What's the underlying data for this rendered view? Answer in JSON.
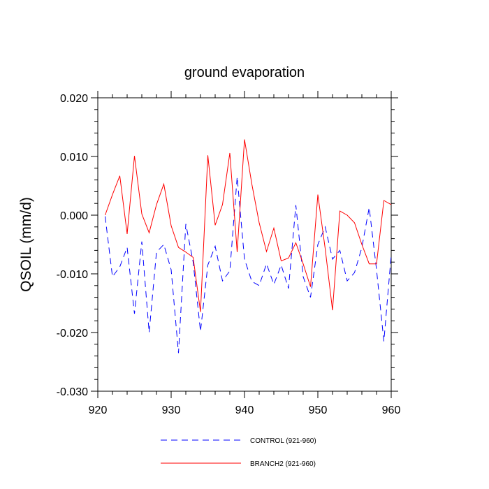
{
  "chart_data": {
    "type": "line",
    "title": "ground evaporation",
    "ylabel": "QSOIL  (mm/d)",
    "xlabel": "",
    "xlim": [
      920,
      960
    ],
    "ylim": [
      -0.03,
      0.02
    ],
    "x_ticks": [
      920,
      930,
      940,
      950,
      960
    ],
    "x_tick_labels": [
      "920",
      "930",
      "940",
      "950",
      "960"
    ],
    "y_ticks": [
      0.02,
      0.01,
      0.0,
      -0.01,
      -0.02,
      -0.03
    ],
    "y_tick_labels": [
      "0.020",
      "0.010",
      "0.000",
      "-0.010",
      "-0.020",
      "-0.030"
    ],
    "legend_position": "bottom",
    "x": [
      921,
      922,
      923,
      924,
      925,
      926,
      927,
      928,
      929,
      930,
      931,
      932,
      933,
      934,
      935,
      936,
      937,
      938,
      939,
      940,
      941,
      942,
      943,
      944,
      945,
      946,
      947,
      948,
      949,
      950,
      951,
      952,
      953,
      954,
      955,
      956,
      957,
      958,
      959,
      960
    ],
    "series": [
      {
        "name": "CONTROL (921-960)",
        "color": "#0000ff",
        "dashed": true,
        "values": [
          -0.0002,
          -0.0105,
          -0.0088,
          -0.0055,
          -0.0168,
          -0.0045,
          -0.02,
          -0.0063,
          -0.005,
          -0.0093,
          -0.0235,
          -0.0015,
          -0.008,
          -0.0198,
          -0.0085,
          -0.0053,
          -0.0112,
          -0.0095,
          0.0065,
          -0.0075,
          -0.0113,
          -0.012,
          -0.0083,
          -0.0118,
          -0.0085,
          -0.0125,
          0.0017,
          -0.0105,
          -0.014,
          -0.005,
          -0.002,
          -0.0075,
          -0.006,
          -0.0112,
          -0.0098,
          -0.0055,
          0.0013,
          -0.0093,
          -0.0215,
          -0.0068
        ]
      },
      {
        "name": "BRANCH2 (921-960)",
        "color": "#ff0000",
        "dashed": false,
        "values": [
          0.0,
          0.0035,
          0.0067,
          -0.0032,
          0.0101,
          0.0002,
          -0.003,
          0.0018,
          0.0053,
          -0.0018,
          -0.0055,
          -0.0063,
          -0.0072,
          -0.0165,
          0.0102,
          -0.0017,
          0.0018,
          0.0106,
          -0.0063,
          0.0129,
          0.0053,
          -0.0013,
          -0.0062,
          -0.0022,
          -0.0078,
          -0.0073,
          -0.0047,
          -0.0083,
          -0.0122,
          0.0035,
          -0.0057,
          -0.0162,
          0.0007,
          0.0,
          -0.0013,
          -0.005,
          -0.0083,
          -0.0083,
          0.0025,
          0.0018
        ]
      }
    ]
  }
}
